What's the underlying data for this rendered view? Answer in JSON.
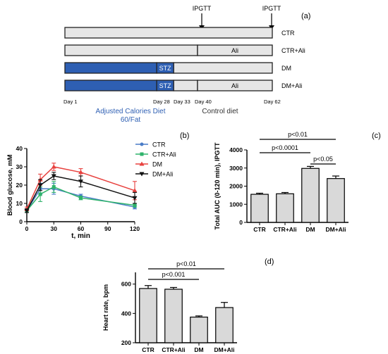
{
  "timeline": {
    "panel_label": "(a)",
    "ipgtt_labels": [
      "IPGTT",
      "IPGTT"
    ],
    "groups": [
      {
        "label": "CTR",
        "segments": [
          {
            "text": "",
            "fill": "#e6e6e6"
          }
        ]
      },
      {
        "label": "CTR+Ali",
        "segments": [
          {
            "text": "",
            "fill": "#e6e6e6"
          },
          {
            "text": "Ali",
            "fill": "#e6e6e6"
          }
        ]
      },
      {
        "label": "DM",
        "segments": [
          {
            "text": "",
            "fill": "#2e5fb3"
          },
          {
            "text": "STZ",
            "fill": "#2e5fb3"
          },
          {
            "text": "",
            "fill": "#e6e6e6"
          }
        ]
      },
      {
        "label": "DM+Ali",
        "segments": [
          {
            "text": "",
            "fill": "#2e5fb3"
          },
          {
            "text": "STZ",
            "fill": "#2e5fb3"
          },
          {
            "text": "",
            "fill": "#e6e6e6"
          },
          {
            "text": "Ali",
            "fill": "#e6e6e6"
          }
        ]
      }
    ],
    "day_labels": [
      "Day 1",
      "Day 28",
      "Day 33",
      "Day 40",
      "Day 62"
    ],
    "diet_label_line1": "Adjusted Calories Diet",
    "diet_label_line2": "60/Fat",
    "control_diet_label": "Control diet",
    "colors": {
      "blue": "#2e5fb3",
      "grey": "#e6e6e6"
    }
  },
  "chart_data": [
    {
      "panel_label": "(b)",
      "type": "line",
      "xlabel": "t, min",
      "ylabel": "Blood glucose, mM",
      "x": [
        0,
        15,
        30,
        60,
        120
      ],
      "xticks": [
        0,
        30,
        60,
        90,
        120
      ],
      "yticks": [
        0,
        10,
        20,
        30,
        40
      ],
      "xlim": [
        0,
        120
      ],
      "ylim": [
        0,
        40
      ],
      "legend_position": "top-right",
      "series": [
        {
          "name": "CTR",
          "color": "#4a7cc7",
          "marker": "circle",
          "values": [
            6,
            18,
            18,
            14,
            8
          ],
          "errors": [
            1,
            3,
            3,
            1,
            1
          ]
        },
        {
          "name": "CTR+Ali",
          "color": "#2fb36b",
          "marker": "square",
          "values": [
            6,
            15,
            19,
            13,
            9
          ],
          "errors": [
            1,
            4,
            3,
            1,
            1
          ]
        },
        {
          "name": "DM",
          "color": "#e8413e",
          "marker": "triangle",
          "values": [
            7,
            23,
            30,
            27,
            17
          ],
          "errors": [
            1,
            3,
            2,
            2,
            5
          ]
        },
        {
          "name": "DM+Ali",
          "color": "#111111",
          "marker": "triangle-down",
          "values": [
            6,
            20,
            25,
            22,
            13
          ],
          "errors": [
            1,
            3,
            2,
            3,
            3
          ]
        }
      ]
    },
    {
      "panel_label": "(c)",
      "type": "bar",
      "ylabel": "Total AUC (0-120 min), IPGTT",
      "categories": [
        "CTR",
        "CTR+Ali",
        "DM",
        "DM+Ali"
      ],
      "values": [
        1550,
        1580,
        2980,
        2420
      ],
      "errors": [
        60,
        70,
        110,
        140
      ],
      "yticks": [
        0,
        1000,
        2000,
        3000,
        4000
      ],
      "ylim": [
        0,
        4000
      ],
      "significance": [
        {
          "label": "p<0.01",
          "from": 0,
          "to": 3
        },
        {
          "label": "p<0.0001",
          "from": 0,
          "to": 2
        },
        {
          "label": "p<0.05",
          "from": 2,
          "to": 3
        }
      ]
    },
    {
      "panel_label": "(d)",
      "type": "bar",
      "ylabel": "Heart rate, bpm",
      "categories": [
        "CTR",
        "CTR+Ali",
        "DM",
        "DM+Ali"
      ],
      "values": [
        570,
        565,
        375,
        440
      ],
      "errors": [
        20,
        12,
        8,
        35
      ],
      "yticks": [
        200,
        400,
        600
      ],
      "ylim": [
        200,
        680
      ],
      "significance": [
        {
          "label": "p<0.01",
          "from": 0,
          "to": 3
        },
        {
          "label": "p<0.001",
          "from": 0,
          "to": 2
        }
      ]
    }
  ]
}
